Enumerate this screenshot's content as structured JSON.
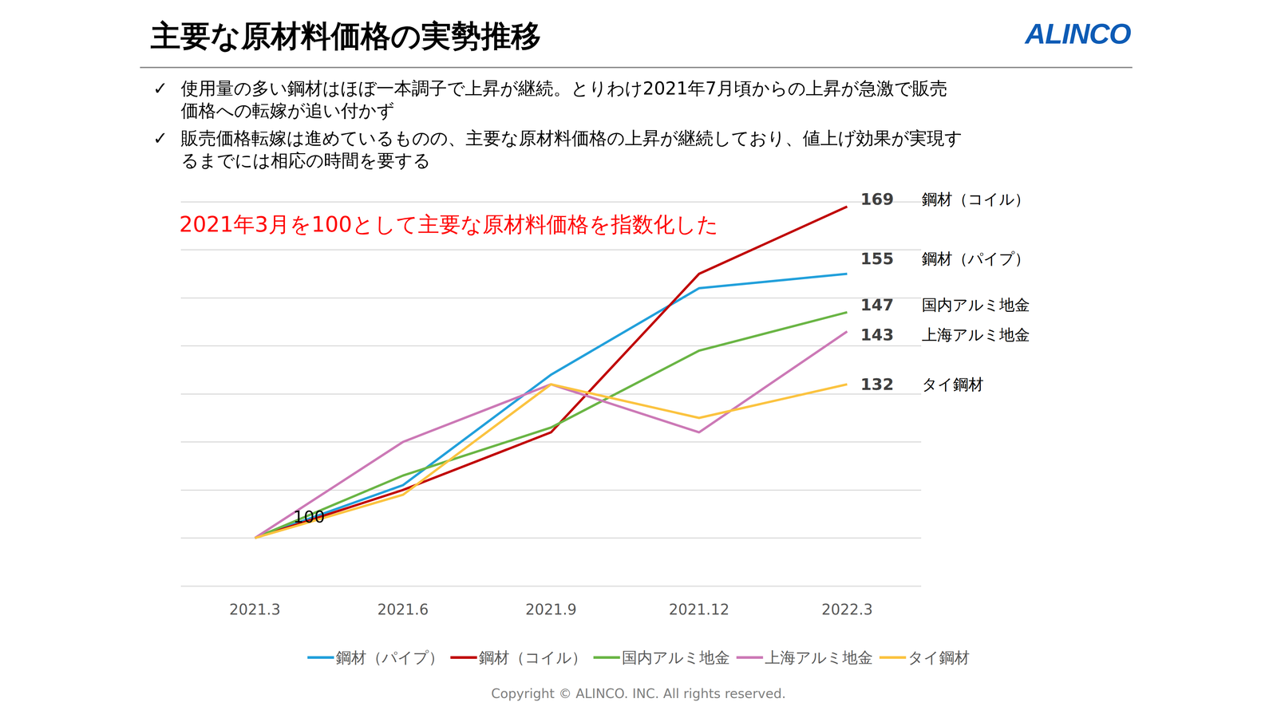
{
  "slide": {
    "title": "主要な原材料価格の実勢推移",
    "logo": "ALINCO",
    "bullets": [
      [
        "使用量の多い鋼材はほぼ一本調子で上昇が継続。とりわけ2021年7月頃からの上昇が急激で販売",
        "価格への転嫁が追い付かず"
      ],
      [
        "販売価格転嫁は進めているものの、主要な原材料価格の上昇が継続しており、値上げ効果が実現す",
        "るまでには相応の時間を要する"
      ]
    ],
    "bullet_mark": "✓",
    "copyright": "Copyright © ALINCO. INC. All rights reserved."
  },
  "chart_data": {
    "type": "line",
    "annotations": [
      "2021年3月を100として主要な原材料価格を指数化した"
    ],
    "categories": [
      "2021.3",
      "2021.6",
      "2021.9",
      "2021.12",
      "2022.3"
    ],
    "series": [
      {
        "name": "鋼材（パイプ）",
        "color": "#22a0db",
        "values": [
          100,
          111,
          134,
          152,
          155
        ],
        "value_labels": [
          "100",
          null,
          null,
          null,
          "155"
        ]
      },
      {
        "name": "鋼材（コイル）",
        "color": "#c00000",
        "values": [
          100,
          110,
          122,
          155,
          169
        ],
        "value_labels": [
          null,
          null,
          null,
          null,
          "169"
        ]
      },
      {
        "name": "国内アルミ地金",
        "color": "#6ab545",
        "values": [
          100,
          113,
          123,
          139,
          147
        ],
        "value_labels": [
          null,
          null,
          null,
          null,
          "147"
        ]
      },
      {
        "name": "上海アルミ地金",
        "color": "#cc79b6",
        "values": [
          100,
          120,
          132,
          122,
          143
        ],
        "value_labels": [
          null,
          null,
          null,
          null,
          "143"
        ]
      },
      {
        "name": "タイ鋼材",
        "color": "#fbc340",
        "values": [
          100,
          109,
          132,
          125,
          132
        ],
        "value_labels": [
          null,
          null,
          null,
          null,
          "132"
        ]
      }
    ],
    "ylim": [
      90,
      170
    ],
    "yticks": [
      90,
      100,
      110,
      120,
      130,
      140,
      150,
      160,
      170
    ],
    "grid": true,
    "legend": "bottom",
    "tick_labels": "x"
  }
}
